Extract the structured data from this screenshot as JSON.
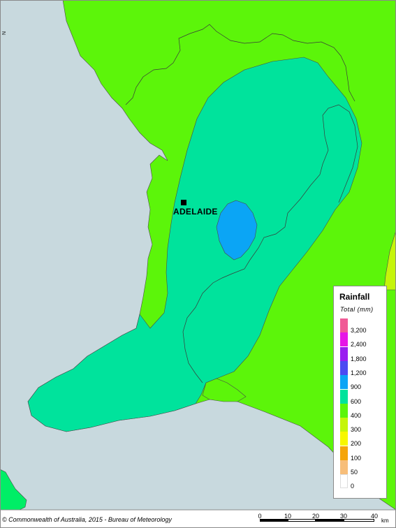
{
  "map": {
    "city_label": "ADELAIDE",
    "north_label": "N",
    "colors": {
      "sea": "#c8d9de",
      "band_400": "#5cf50a",
      "band_600": "#00e39c",
      "band_900": "#0ba5f5",
      "band_300": "#c5f50a",
      "coast_dark": "#00ee66",
      "city_marker": "#000000"
    }
  },
  "legend": {
    "title": "Rainfall",
    "subtitle": "Total (mm)",
    "items": [
      {
        "label": "3,200",
        "color": "#f05a96"
      },
      {
        "label": "2,400",
        "color": "#e617e6"
      },
      {
        "label": "1,800",
        "color": "#9a1ef0"
      },
      {
        "label": "1,200",
        "color": "#4b4bf2"
      },
      {
        "label": "900",
        "color": "#0ba5f5"
      },
      {
        "label": "600",
        "color": "#00e39c"
      },
      {
        "label": "400",
        "color": "#5cf50a"
      },
      {
        "label": "300",
        "color": "#c5f50a"
      },
      {
        "label": "200",
        "color": "#f7f700"
      },
      {
        "label": "100",
        "color": "#f5a50a"
      },
      {
        "label": "50",
        "color": "#f7be7a"
      },
      {
        "label": "0",
        "color": "#ffffff"
      }
    ]
  },
  "footer": {
    "copyright": "© Commonwealth of Australia, 2015 - Bureau of Meteorology"
  },
  "scale": {
    "unit": "km",
    "ticks": [
      "0",
      "10",
      "20",
      "30",
      "40"
    ]
  }
}
